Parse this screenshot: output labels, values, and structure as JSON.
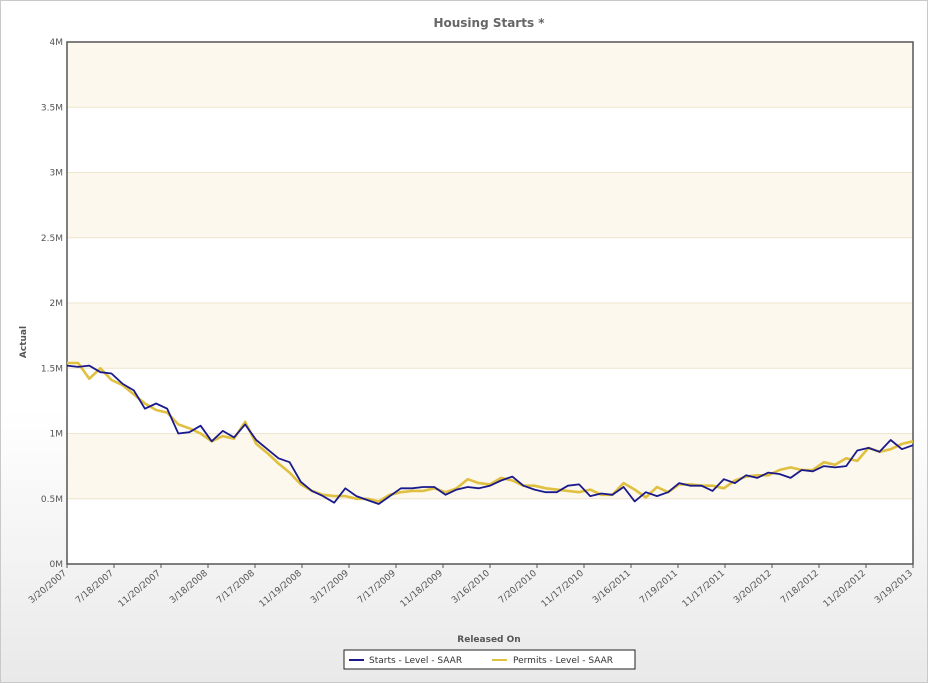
{
  "chart_data": {
    "type": "line",
    "title": "Housing Starts *",
    "xlabel": "Released On",
    "ylabel": "Actual",
    "ylim": [
      0,
      4000000
    ],
    "yticks": [
      {
        "value": 0,
        "label": "0M"
      },
      {
        "value": 500000,
        "label": "0.5M"
      },
      {
        "value": 1000000,
        "label": "1M"
      },
      {
        "value": 1500000,
        "label": "1.5M"
      },
      {
        "value": 2000000,
        "label": "2M"
      },
      {
        "value": 2500000,
        "label": "2.5M"
      },
      {
        "value": 3000000,
        "label": "3M"
      },
      {
        "value": 3500000,
        "label": "3.5M"
      },
      {
        "value": 4000000,
        "label": "4M"
      }
    ],
    "xlim": [
      "3/20/2007",
      "3/19/2013"
    ],
    "xticks": [
      "3/20/2007",
      "7/18/2007",
      "11/20/2007",
      "3/18/2008",
      "7/17/2008",
      "11/19/2008",
      "3/17/2009",
      "7/17/2009",
      "11/18/2009",
      "3/16/2010",
      "7/20/2010",
      "11/17/2010",
      "3/16/2011",
      "7/19/2011",
      "11/17/2011",
      "3/20/2012",
      "7/18/2012",
      "11/20/2012",
      "3/19/2013"
    ],
    "grid": "alternating horizontal bands",
    "legend_position": "bottom-center",
    "series": [
      {
        "name": "Starts - Level - SAAR",
        "color": "#1a1a8c",
        "values": [
          1520000,
          1510000,
          1520000,
          1470000,
          1460000,
          1380000,
          1330000,
          1190000,
          1230000,
          1190000,
          1000000,
          1010000,
          1060000,
          940000,
          1020000,
          970000,
          1070000,
          950000,
          880000,
          810000,
          780000,
          630000,
          560000,
          520000,
          470000,
          580000,
          520000,
          490000,
          460000,
          520000,
          580000,
          580000,
          590000,
          590000,
          530000,
          570000,
          590000,
          580000,
          600000,
          640000,
          670000,
          600000,
          570000,
          550000,
          550000,
          600000,
          610000,
          520000,
          540000,
          530000,
          590000,
          480000,
          550000,
          520000,
          550000,
          620000,
          600000,
          600000,
          560000,
          650000,
          620000,
          680000,
          660000,
          700000,
          690000,
          660000,
          720000,
          710000,
          750000,
          740000,
          750000,
          870000,
          890000,
          860000,
          950000,
          880000,
          910000
        ],
        "x_start": "3/20/2007",
        "x_end": "3/19/2013"
      },
      {
        "name": "Permits - Level - SAAR",
        "color": "#e0c040",
        "values": [
          1540000,
          1540000,
          1420000,
          1500000,
          1410000,
          1370000,
          1300000,
          1230000,
          1180000,
          1160000,
          1070000,
          1040000,
          1000000,
          940000,
          980000,
          960000,
          1090000,
          920000,
          850000,
          770000,
          700000,
          610000,
          560000,
          530000,
          520000,
          520000,
          500000,
          500000,
          480000,
          530000,
          550000,
          560000,
          560000,
          580000,
          550000,
          580000,
          650000,
          620000,
          610000,
          660000,
          640000,
          600000,
          600000,
          580000,
          570000,
          560000,
          550000,
          570000,
          530000,
          530000,
          620000,
          570000,
          510000,
          590000,
          550000,
          610000,
          610000,
          600000,
          600000,
          580000,
          640000,
          670000,
          680000,
          680000,
          720000,
          740000,
          720000,
          720000,
          780000,
          760000,
          810000,
          790000,
          890000,
          860000,
          880000,
          920000,
          940000
        ],
        "x_start": "3/20/2007",
        "x_end": "3/19/2013"
      }
    ]
  }
}
